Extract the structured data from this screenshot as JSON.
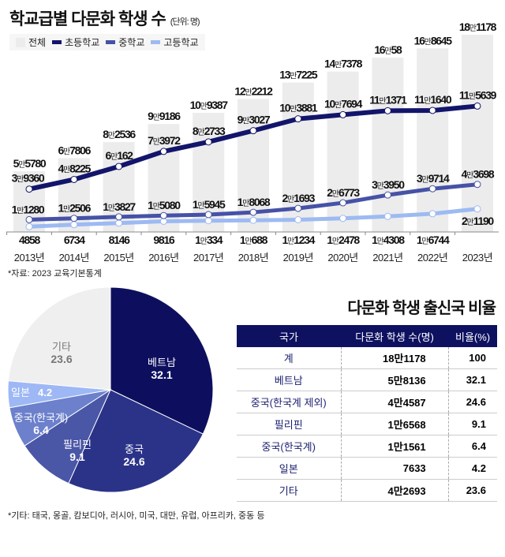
{
  "title": "학교급별 다문화 학생 수",
  "unit": "(단위: 명)",
  "source": "*자료: 2023 교육기본통계",
  "chart_data": [
    {
      "type": "bar+line",
      "title": "학교급별 다문화 학생 수",
      "unit": "(단위: 명)",
      "legend_position": "top-left",
      "categories": [
        "2013년",
        "2014년",
        "2015년",
        "2016년",
        "2017년",
        "2018년",
        "2019년",
        "2020년",
        "2021년",
        "2022년",
        "2023년"
      ],
      "series": [
        {
          "name": "전체",
          "kind": "bar",
          "color": "#ececec",
          "values": [
            55780,
            67806,
            82536,
            99186,
            109387,
            122212,
            137225,
            147378,
            160058,
            168645,
            181178
          ]
        },
        {
          "name": "초등학교",
          "kind": "line",
          "color": "#13156b",
          "values": [
            39360,
            48225,
            60162,
            73972,
            82733,
            93027,
            103881,
            107694,
            111371,
            111640,
            115639
          ]
        },
        {
          "name": "중학교",
          "kind": "line",
          "color": "#4652a6",
          "values": [
            11280,
            12506,
            13827,
            15080,
            15945,
            18068,
            21693,
            26773,
            33950,
            39714,
            43698
          ]
        },
        {
          "name": "고등학교",
          "kind": "line",
          "color": "#9dbaf2",
          "values": [
            4858,
            6734,
            8146,
            9816,
            10334,
            10688,
            11234,
            12478,
            14308,
            16744,
            21190
          ]
        }
      ],
      "grid": false
    },
    {
      "type": "pie",
      "slices": [
        {
          "label": "베트남",
          "value": 32.1,
          "color": "#0d0f5e",
          "text_color": "#ffffff"
        },
        {
          "label": "중국",
          "value": 24.6,
          "color": "#2b3388",
          "text_color": "#ffffff"
        },
        {
          "label": "필리핀",
          "value": 9.1,
          "color": "#4a56a6",
          "text_color": "#ffffff"
        },
        {
          "label": "중국(한국계)",
          "value": 6.4,
          "color": "#6c80cc",
          "text_color": "#ffffff"
        },
        {
          "label": "일본",
          "value": 4.2,
          "color": "#9db8f5",
          "text_color": "#ffffff"
        },
        {
          "label": "기타",
          "value": 23.6,
          "color": "#efefef",
          "text_color": "#777777"
        }
      ]
    }
  ],
  "table": {
    "title": "다문화 학생 출신국 비율",
    "headers": [
      "국가",
      "다문화 학생 수(명)",
      "비율(%)"
    ],
    "rows": [
      [
        "계",
        "18만1178",
        "100"
      ],
      [
        "베트남",
        "5만8136",
        "32.1"
      ],
      [
        "중국(한국계 제외)",
        "4만4587",
        "24.6"
      ],
      [
        "필리핀",
        "1만6568",
        "9.1"
      ],
      [
        "중국(한국계)",
        "1만1561",
        "6.4"
      ],
      [
        "일본",
        "7633",
        "4.2"
      ],
      [
        "기타",
        "4만2693",
        "23.6"
      ]
    ]
  },
  "footnote": "*기타: 태국, 몽골, 캄보디아, 러시아, 미국, 대만, 유럽, 아프리카, 중동 등"
}
